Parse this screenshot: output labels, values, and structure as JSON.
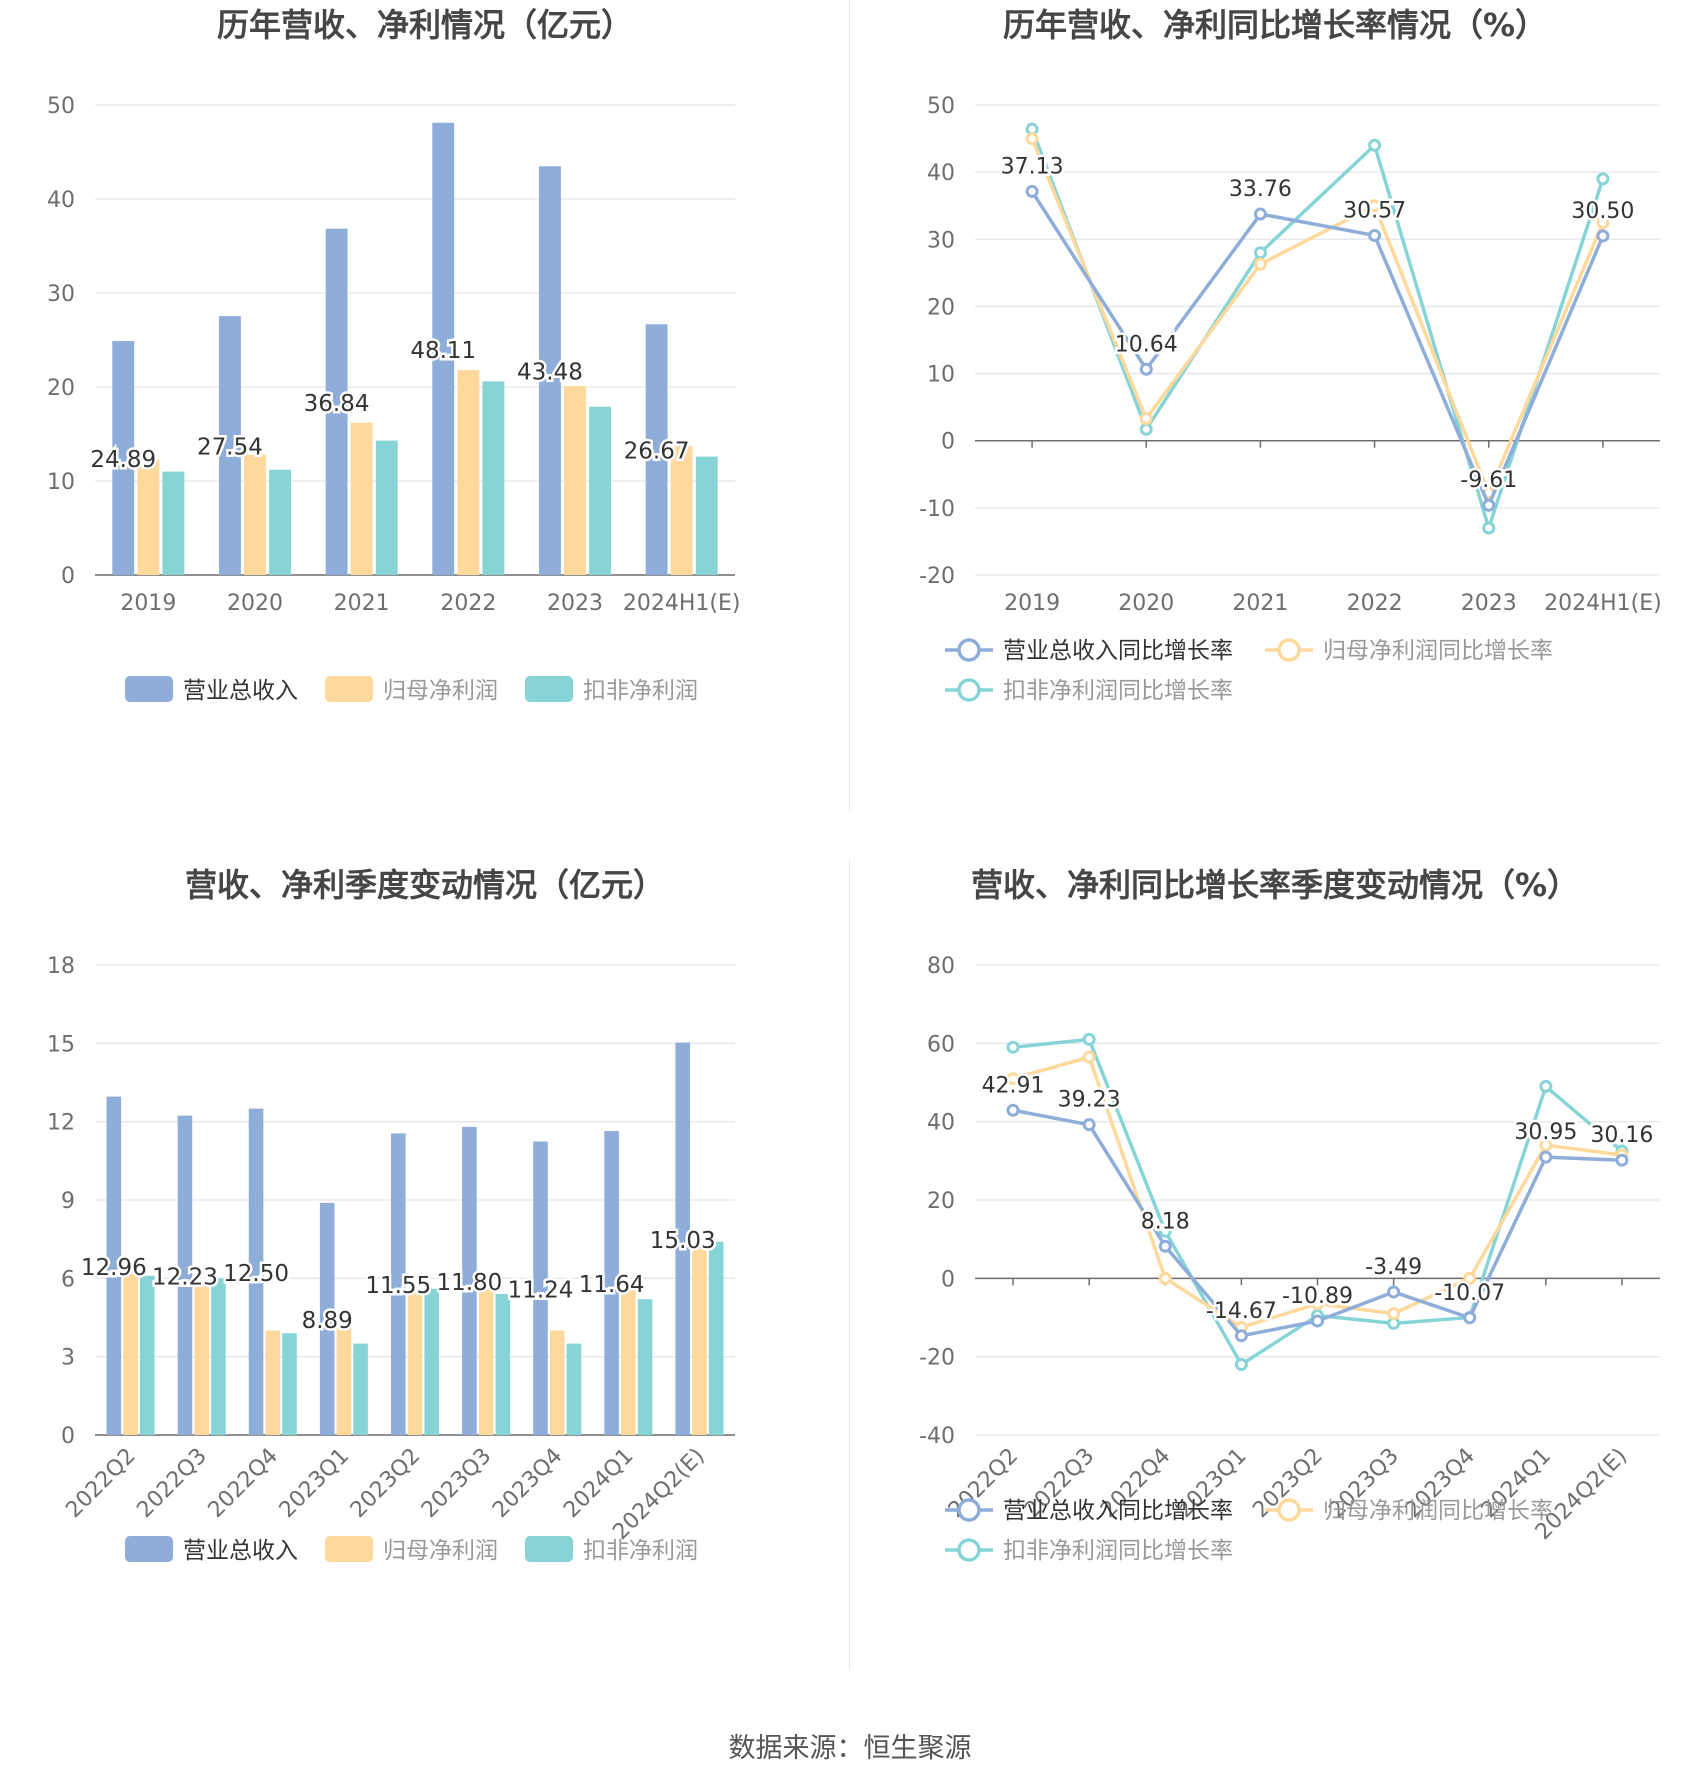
{
  "colors": {
    "revenue": "#8eadd9",
    "net_profit": "#ffd89c",
    "deducted_profit": "#87d4d7",
    "revenue_line": "#8eadd9",
    "net_line": "#ffd89c",
    "deducted_line": "#87d4d7",
    "grid": "#e3e6ee",
    "axis_text": "#6e6e6e",
    "title": "#464646"
  },
  "source_text": "数据来源：恒生聚源",
  "chart_data": [
    {
      "type": "bar",
      "title": "历年营收、净利情况（亿元）",
      "categories": [
        "2019",
        "2020",
        "2021",
        "2022",
        "2023",
        "2024H1(E)"
      ],
      "ylim": [
        0,
        50
      ],
      "yticks": [
        0,
        10,
        20,
        30,
        40,
        50
      ],
      "series": [
        {
          "name": "营业总收入",
          "values": [
            24.89,
            27.54,
            36.84,
            48.11,
            43.48,
            26.67
          ]
        },
        {
          "name": "归母净利润",
          "values": [
            12.3,
            12.8,
            16.2,
            21.8,
            20.1,
            13.7
          ]
        },
        {
          "name": "扣非净利润",
          "values": [
            11.0,
            11.2,
            14.3,
            20.6,
            17.9,
            12.6
          ]
        }
      ],
      "data_labels": [
        "24.89",
        "27.54",
        "36.84",
        "48.11",
        "43.48",
        "26.67"
      ],
      "legend": "bottom",
      "grid": true
    },
    {
      "type": "line",
      "title": "历年营收、净利同比增长率情况（%）",
      "categories": [
        "2019",
        "2020",
        "2021",
        "2022",
        "2023",
        "2024H1(E)"
      ],
      "ylim": [
        -20,
        50
      ],
      "yticks": [
        -20,
        -10,
        0,
        10,
        20,
        30,
        40,
        50
      ],
      "series": [
        {
          "name": "营业总收入同比增长率",
          "values": [
            37.13,
            10.64,
            33.76,
            30.57,
            -9.61,
            30.5
          ]
        },
        {
          "name": "归母净利润同比增长率",
          "values": [
            45.0,
            3.3,
            26.3,
            35.0,
            -7.8,
            32.5
          ]
        },
        {
          "name": "扣非净利润同比增长率",
          "values": [
            46.4,
            1.7,
            28.0,
            44.0,
            -13.0,
            39.0
          ]
        }
      ],
      "data_labels": [
        "37.13",
        "10.64",
        "33.76",
        "30.57",
        "-9.61",
        "30.50"
      ],
      "legend": "bottom",
      "grid": true
    },
    {
      "type": "bar",
      "title": "营收、净利季度变动情况（亿元）",
      "categories": [
        "2022Q2",
        "2022Q3",
        "2022Q4",
        "2023Q1",
        "2023Q2",
        "2023Q3",
        "2023Q4",
        "2024Q1",
        "2024Q2(E)"
      ],
      "ylim": [
        0,
        18
      ],
      "yticks": [
        0,
        3,
        6,
        9,
        12,
        15,
        18
      ],
      "series": [
        {
          "name": "营业总收入",
          "values": [
            12.96,
            12.23,
            12.5,
            8.89,
            11.55,
            11.8,
            11.24,
            11.64,
            15.03
          ]
        },
        {
          "name": "归母净利润",
          "values": [
            6.2,
            5.9,
            4.0,
            4.2,
            5.5,
            5.6,
            4.0,
            5.6,
            7.2
          ]
        },
        {
          "name": "扣非净利润",
          "values": [
            6.1,
            6.0,
            3.9,
            3.5,
            5.6,
            5.4,
            3.5,
            5.2,
            7.4
          ]
        }
      ],
      "data_labels": [
        "12.96",
        "12.23",
        "12.50",
        "8.89",
        "11.55",
        "11.80",
        "11.24",
        "11.64",
        "15.03"
      ],
      "legend": "bottom",
      "grid": true
    },
    {
      "type": "line",
      "title": "营收、净利同比增长率季度变动情况（%）",
      "categories": [
        "2022Q2",
        "2022Q3",
        "2022Q4",
        "2023Q1",
        "2023Q2",
        "2023Q3",
        "2023Q4",
        "2024Q1",
        "2024Q2(E)"
      ],
      "ylim": [
        -40,
        80
      ],
      "yticks": [
        -40,
        -20,
        0,
        20,
        40,
        60,
        80
      ],
      "series": [
        {
          "name": "营业总收入同比增长率",
          "values": [
            42.91,
            39.23,
            8.18,
            -14.67,
            -10.89,
            -3.49,
            -10.07,
            30.95,
            30.16
          ]
        },
        {
          "name": "归母净利润同比增长率",
          "values": [
            51.0,
            56.5,
            0.0,
            -12.5,
            -6.5,
            -9.0,
            0.0,
            34.0,
            31.5
          ]
        },
        {
          "name": "扣非净利润同比增长率",
          "values": [
            59.0,
            61.0,
            12.0,
            -22.0,
            -9.5,
            -11.5,
            -10.0,
            49.0,
            32.5
          ]
        }
      ],
      "data_labels": [
        "42.91",
        "39.23",
        "8.18",
        "-14.67",
        "-10.89",
        "-3.49",
        "-10.07",
        "30.95",
        "30.16"
      ],
      "legend": "bottom",
      "grid": true
    }
  ]
}
